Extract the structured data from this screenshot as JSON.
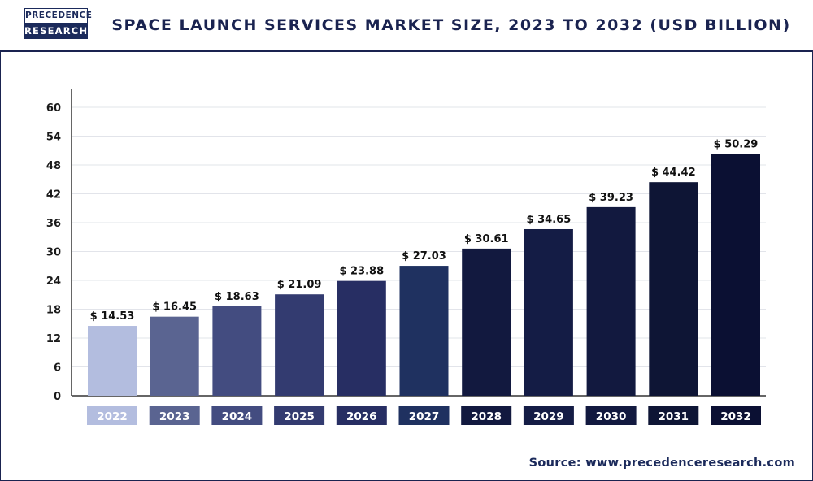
{
  "header": {
    "logo_top": "PRECEDENCE",
    "logo_bottom": "RESEARCH",
    "title": "SPACE LAUNCH SERVICES MARKET SIZE, 2023 TO 2032 (USD BILLION)"
  },
  "footer": {
    "source": "Source: www.precedenceresearch.com"
  },
  "colors": {
    "frame": "#1a2350",
    "bars": [
      "#b3bddf",
      "#5a6491",
      "#434c80",
      "#333b70",
      "#272e63",
      "#1f3160",
      "#12193f",
      "#141c45",
      "#12193f",
      "#0e1535",
      "#0b1033"
    ]
  },
  "chart_data": {
    "type": "bar",
    "title": "SPACE LAUNCH SERVICES MARKET SIZE, 2023 TO 2032 (USD BILLION)",
    "categories": [
      "2022",
      "2023",
      "2024",
      "2025",
      "2026",
      "2027",
      "2028",
      "2029",
      "2030",
      "2031",
      "2032"
    ],
    "values": [
      14.53,
      16.45,
      18.63,
      21.09,
      23.88,
      27.03,
      30.61,
      34.65,
      39.23,
      44.42,
      50.29
    ],
    "value_labels": [
      "$ 14.53",
      "$ 16.45",
      "$ 18.63",
      "$ 21.09",
      "$ 23.88",
      "$ 27.03",
      "$ 30.61",
      "$ 34.65",
      "$ 39.23",
      "$ 44.42",
      "$ 50.29"
    ],
    "yticks": [
      0,
      6,
      12,
      18,
      24,
      30,
      36,
      42,
      48,
      54,
      60
    ],
    "ylim": [
      0,
      60
    ],
    "xlabel": "",
    "ylabel": "",
    "grid": true,
    "legend": "none"
  }
}
